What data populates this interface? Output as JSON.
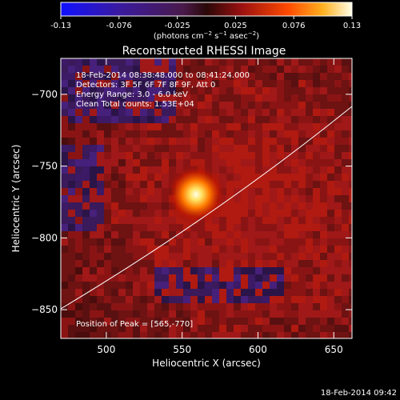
{
  "colorbar": {
    "ticks": [
      "-0.13",
      "-0.076",
      "-0.025",
      "0.025",
      "0.076",
      "0.13"
    ],
    "units_label": "(photons cm",
    "units_exp1": "−2",
    "units_mid": " s",
    "units_exp2": "−1",
    "units_mid2": " asec",
    "units_exp3": "−2",
    "units_end": ")"
  },
  "plot": {
    "title": "Reconstructed RHESSI Image",
    "info": [
      "18-Feb-2014 08:38:48.000 to 08:41:24.000",
      "Detectors: 3F 5F 6F 7F 8F 9F, Att 0",
      "Energy Range: 3.0 - 6.0 keV",
      "Clean     Total counts: 1.53E+04"
    ],
    "peak_label": "Position of Peak = [565,-770]",
    "xlabel": "Heliocentric X (arcsec)",
    "ylabel": "Heliocentric Y (arcsec)",
    "x_ticks": [
      "500",
      "550",
      "600",
      "650"
    ],
    "y_ticks": [
      "-700",
      "-750",
      "-800",
      "-850"
    ]
  },
  "footer": {
    "timestamp": "18-Feb-2014 09:42"
  },
  "colors": {
    "background": "#000000",
    "limb_line": "#ffffff",
    "colormap": [
      "#0000ff",
      "#3a1aa0",
      "#5a2a7a",
      "#7a1a1a",
      "#c41e00",
      "#ff7000",
      "#ffd040",
      "#ffffe0"
    ]
  }
}
